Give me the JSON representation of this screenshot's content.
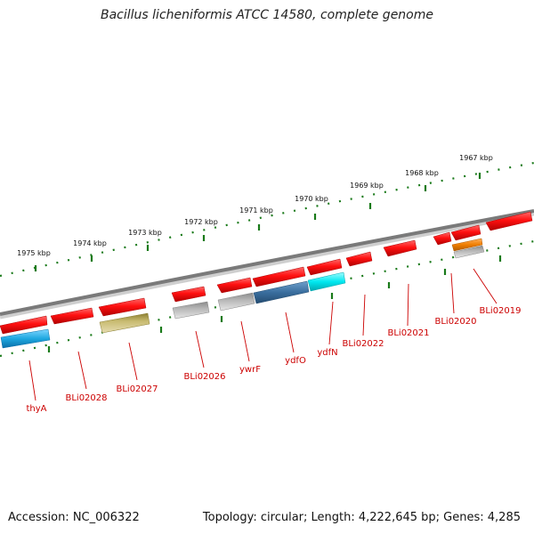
{
  "title": "Bacillus licheniformis ATCC 14580, complete genome",
  "footer": {
    "accession": "Accession: NC_006322",
    "summary": "Topology: circular; Length: 4,222,645 bp; Genes: 4,285"
  },
  "colors": {
    "forward_strand": "#ff1010",
    "backbone": "#808080",
    "ticks": "#1a7a1a",
    "labels": "#cc0000"
  },
  "scale": [
    "1975 kbp",
    "1974 kbp",
    "1973 kbp",
    "1972 kbp",
    "1971 kbp",
    "1970 kbp",
    "1969 kbp",
    "1968 kbp",
    "1967 kbp"
  ],
  "genes": {
    "forward": [
      {
        "name": "thyA-top"
      },
      {
        "name": "BLi02028-top"
      },
      {
        "name": "BLi02027-top"
      },
      {
        "name": "BLi02026-top"
      },
      {
        "name": "ywrF-top"
      },
      {
        "name": "ydfO-top"
      },
      {
        "name": "ydfN-top"
      },
      {
        "name": "BLi02022-top"
      },
      {
        "name": "BLi02021-top"
      },
      {
        "name": "BLi02020-top"
      },
      {
        "name": "BLi02019-top"
      },
      {
        "name": "next-top"
      }
    ],
    "features": [
      {
        "label": "thyA",
        "color": "#1ea8e0"
      },
      {
        "label": "BLi02027",
        "color": "#b8aa60"
      },
      {
        "label": "BLi02026",
        "color": "#a8a8a8"
      },
      {
        "label": "ywrF",
        "color": "#a8a8a8"
      },
      {
        "label": "ydfO",
        "color": "#3a6e9e"
      },
      {
        "label": "ydfN",
        "color": "#00e8f0"
      },
      {
        "label": "BLi02019",
        "color": "#f07e00"
      }
    ]
  },
  "labels": [
    "thyA",
    "BLi02028",
    "BLi02027",
    "BLi02026",
    "ywrF",
    "ydfO",
    "ydfN",
    "BLi02022",
    "BLi02021",
    "BLi02020",
    "BLi02019"
  ]
}
